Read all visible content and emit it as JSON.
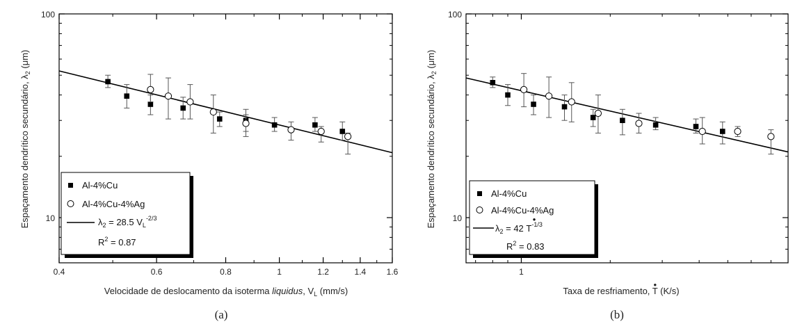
{
  "chart_data": [
    {
      "type": "scatter",
      "panel_label": "(a)",
      "xscale": "log",
      "yscale": "log",
      "xlim": [
        0.4,
        1.6
      ],
      "ylim": [
        6,
        100
      ],
      "xticks": [
        0.4,
        0.6,
        0.8,
        1,
        1.2,
        1.4,
        1.6
      ],
      "xtick_labels": [
        "0.4",
        "0.6",
        "0.8",
        "1",
        "1.2",
        "1.4",
        "1.6"
      ],
      "yticks": [
        10,
        100
      ],
      "ytick_labels": [
        "10",
        "100"
      ],
      "xlabel": {
        "pre": "Velocidade de deslocamento da isoterma ",
        "ital": "liquidus",
        "mid": ", V",
        "sub": "L",
        "post": " (mm/s)"
      },
      "ylabel": {
        "pre": "Espaçamento dendrítico secundário, λ",
        "sub": "2",
        "post": " (μm)"
      },
      "series": [
        {
          "name": "Al-4%Cu",
          "marker": "filled-square",
          "points": [
            {
              "x": 0.49,
              "y": 46.5,
              "lo": 43.5,
              "hi": 50
            },
            {
              "x": 0.53,
              "y": 39.5,
              "lo": 34.5,
              "hi": 45
            },
            {
              "x": 0.585,
              "y": 36,
              "lo": 32,
              "hi": 40
            },
            {
              "x": 0.67,
              "y": 34.5,
              "lo": 30.5,
              "hi": 39
            },
            {
              "x": 0.78,
              "y": 30.5,
              "lo": 28,
              "hi": 33
            },
            {
              "x": 0.87,
              "y": 30,
              "lo": 26.5,
              "hi": 34
            },
            {
              "x": 0.98,
              "y": 28.5,
              "lo": 26.5,
              "hi": 31
            },
            {
              "x": 1.16,
              "y": 28.5,
              "lo": 26.5,
              "hi": 31
            },
            {
              "x": 1.3,
              "y": 26.5,
              "lo": 24,
              "hi": 29.5
            }
          ]
        },
        {
          "name": "Al-4%Cu-4%Ag",
          "marker": "open-circle",
          "points": [
            {
              "x": 0.585,
              "y": 42.5,
              "lo": 37,
              "hi": 50.5
            },
            {
              "x": 0.63,
              "y": 39.5,
              "lo": 30.5,
              "hi": 48.5
            },
            {
              "x": 0.69,
              "y": 37,
              "lo": 30.5,
              "hi": 45
            },
            {
              "x": 0.76,
              "y": 33,
              "lo": 26,
              "hi": 40
            },
            {
              "x": 0.87,
              "y": 29,
              "lo": 25,
              "hi": 32
            },
            {
              "x": 1.05,
              "y": 27,
              "lo": 24,
              "hi": 29.5
            },
            {
              "x": 1.19,
              "y": 26.5,
              "lo": 23.5,
              "hi": 28
            },
            {
              "x": 1.33,
              "y": 25,
              "lo": 20.5,
              "hi": 26
            }
          ]
        }
      ],
      "fit": {
        "coef": 28.5,
        "exponent": -0.6667,
        "x_from": 0.4,
        "x_to": 1.6
      },
      "legend": {
        "placement": "bottom-left",
        "entry1": "Al-4%Cu",
        "entry2": "Al-4%Cu-4%Ag",
        "fit_pre": "λ",
        "fit_sub": "2",
        "fit_mid": " = 28.5 V",
        "fit_var_sub": "L",
        "fit_sup": "-2/3",
        "r2_pre": "R",
        "r2_sup": "2",
        "r2_post": " = 0.87"
      }
    },
    {
      "type": "scatter",
      "panel_label": "(b)",
      "xscale": "log",
      "yscale": "log",
      "xlim": [
        0.65,
        8
      ],
      "ylim": [
        6,
        100
      ],
      "xticks": [
        1
      ],
      "xtick_labels": [
        "1"
      ],
      "yticks": [
        10,
        100
      ],
      "ytick_labels": [
        "10",
        "100"
      ],
      "xlabel": {
        "pre": "Taxa de resfriamento, ",
        "dotvar": "T",
        "post": " (K/s)"
      },
      "ylabel": {
        "pre": "Espaçamento dendrítico secundário, λ",
        "sub": "2",
        "post": " (μm)"
      },
      "series": [
        {
          "name": "Al-4%Cu",
          "marker": "filled-square",
          "points": [
            {
              "x": 0.8,
              "y": 46,
              "lo": 43.5,
              "hi": 49
            },
            {
              "x": 0.9,
              "y": 40,
              "lo": 35.5,
              "hi": 45
            },
            {
              "x": 1.1,
              "y": 36,
              "lo": 32,
              "hi": 40
            },
            {
              "x": 1.4,
              "y": 35,
              "lo": 30,
              "hi": 40
            },
            {
              "x": 1.75,
              "y": 31,
              "lo": 28,
              "hi": 34
            },
            {
              "x": 2.2,
              "y": 30,
              "lo": 25.5,
              "hi": 34
            },
            {
              "x": 2.85,
              "y": 28.5,
              "lo": 27,
              "hi": 31
            },
            {
              "x": 3.9,
              "y": 28,
              "lo": 26,
              "hi": 30.5
            },
            {
              "x": 4.8,
              "y": 26.5,
              "lo": 23,
              "hi": 29.5
            }
          ]
        },
        {
          "name": "Al-4%Cu-4%Ag",
          "marker": "open-circle",
          "points": [
            {
              "x": 1.02,
              "y": 42.5,
              "lo": 35,
              "hi": 51
            },
            {
              "x": 1.24,
              "y": 39.5,
              "lo": 31,
              "hi": 49
            },
            {
              "x": 1.48,
              "y": 37,
              "lo": 29.5,
              "hi": 46
            },
            {
              "x": 1.82,
              "y": 32.5,
              "lo": 26,
              "hi": 40
            },
            {
              "x": 2.5,
              "y": 29,
              "lo": 26,
              "hi": 32.5
            },
            {
              "x": 4.1,
              "y": 26.5,
              "lo": 23,
              "hi": 31
            },
            {
              "x": 5.4,
              "y": 26.5,
              "lo": 25,
              "hi": 28
            },
            {
              "x": 7.0,
              "y": 25,
              "lo": 20.5,
              "hi": 27
            }
          ]
        }
      ],
      "fit": {
        "coef": 42,
        "exponent": -0.3333,
        "x_from": 0.65,
        "x_to": 8
      },
      "legend": {
        "placement": "bottom-left",
        "entry1": "Al-4%Cu",
        "entry2": "Al-4%Cu-4%Ag",
        "fit_pre": "λ",
        "fit_sub": "2",
        "fit_mid": " = 42 ",
        "fit_dotvar": "T",
        "fit_sup": "-1/3",
        "r2_pre": "R",
        "r2_sup": "2",
        "r2_post": " = 0.83"
      }
    }
  ]
}
